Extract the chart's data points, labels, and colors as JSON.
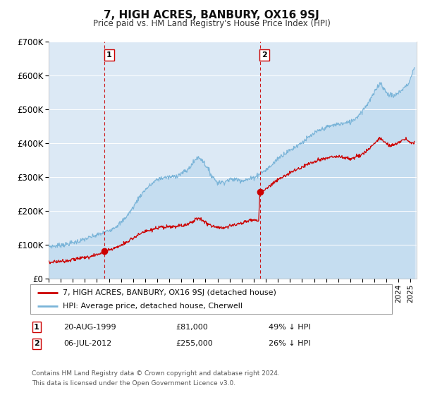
{
  "title": "7, HIGH ACRES, BANBURY, OX16 9SJ",
  "subtitle": "Price paid vs. HM Land Registry's House Price Index (HPI)",
  "background_color": "#ffffff",
  "plot_bg_color": "#dce9f5",
  "grid_color": "#ffffff",
  "hpi_color": "#7ab4d8",
  "hpi_fill_color": "#c5ddf0",
  "price_color": "#cc0000",
  "marker_color": "#cc0000",
  "ylim": [
    0,
    700000
  ],
  "ytick_labels": [
    "£0",
    "£100K",
    "£200K",
    "£300K",
    "£400K",
    "£500K",
    "£600K",
    "£700K"
  ],
  "ytick_values": [
    0,
    100000,
    200000,
    300000,
    400000,
    500000,
    600000,
    700000
  ],
  "sale1_date": "20-AUG-1999",
  "sale1_price": "£81,000",
  "sale1_pct": "49% ↓ HPI",
  "sale1_x": 1999.64,
  "sale1_y": 81000,
  "sale2_date": "06-JUL-2012",
  "sale2_price": "£255,000",
  "sale2_pct": "26% ↓ HPI",
  "sale2_x": 2012.51,
  "sale2_y": 255000,
  "legend_label1": "7, HIGH ACRES, BANBURY, OX16 9SJ (detached house)",
  "legend_label2": "HPI: Average price, detached house, Cherwell",
  "footnote1": "Contains HM Land Registry data © Crown copyright and database right 2024.",
  "footnote2": "This data is licensed under the Open Government Licence v3.0.",
  "xmin": 1995.0,
  "xmax": 2025.5
}
